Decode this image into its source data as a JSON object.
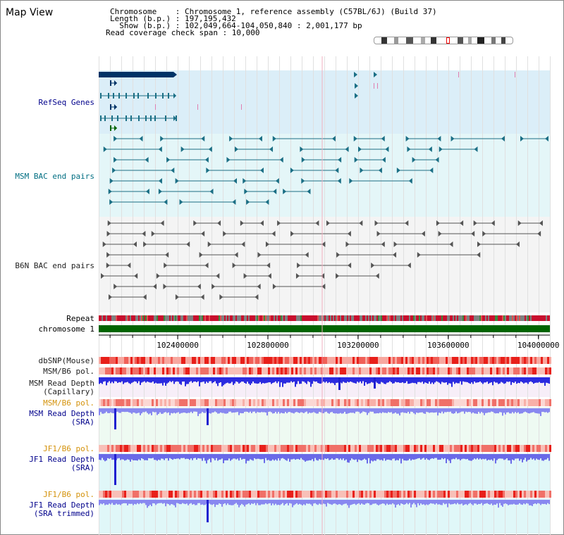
{
  "page": {
    "title": "Map View",
    "info_lines": [
      "Chromosome    : Chromosome 1, reference assembly (C57BL/6J) (Build 37)",
      "Length (b.p.) : 197,195,432",
      "  Show (b.p.) : 102,049,664-104,050,840 : 2,001,177 bp",
      "Read coverage check span : 10,000"
    ]
  },
  "tracks": {
    "refseq": "RefSeq Genes",
    "msm_bac": "MSM BAC end pairs",
    "b6n_bac": "B6N BAC end pairs",
    "repeat": "Repeat",
    "chromosome": "chromosome 1",
    "dbsnp": "dbSNP(Mouse)",
    "msm_b6_pol": "MSM/B6 pol.",
    "msm_depth_cap_1": "MSM Read Depth",
    "msm_depth_cap_2": "(Capillary)",
    "msm_b6_pol_sra": "MSM/B6 pol.",
    "msm_depth_sra_1": "MSM Read Depth",
    "msm_depth_sra_2": "(SRA)",
    "jf1_b6_pol_1": "JF1/B6 pol.",
    "jf1_depth_sra_1": "JF1 Read Depth",
    "jf1_depth_sra_2": "(SRA)",
    "jf1_b6_pol_2": "JF1/B6 pol.",
    "jf1_depth_trim_1": "JF1 Read Depth",
    "jf1_depth_trim_2": "(SRA trimmed)"
  },
  "axis": {
    "range_bp": [
      102049664,
      104050840
    ],
    "ticks": [
      {
        "value": 102400000,
        "label": "102400000"
      },
      {
        "value": 102800000,
        "label": "102800000"
      },
      {
        "value": 103200000,
        "label": "103200000"
      },
      {
        "value": 103600000,
        "label": "103600000"
      },
      {
        "value": 104000000,
        "label": "104000000"
      }
    ]
  },
  "colors": {
    "refseq_bg": "#dbeef8",
    "msm_bg": "#e4f6f8",
    "b6n_bg": "#f4f4f4",
    "msm_depth_bg": "#f7eef8",
    "sra_depth_bg": "#eefaf2",
    "jf1_depth_bg": "#e0f7f8",
    "label_gray": "#222222",
    "label_teal": "#006e82",
    "label_navy": "#00008b",
    "label_orange": "#d4920b",
    "chromosome": "#006400",
    "gene": "#003366",
    "bac_msm": "#1b6f85",
    "bac_b6n": "#555555"
  }
}
